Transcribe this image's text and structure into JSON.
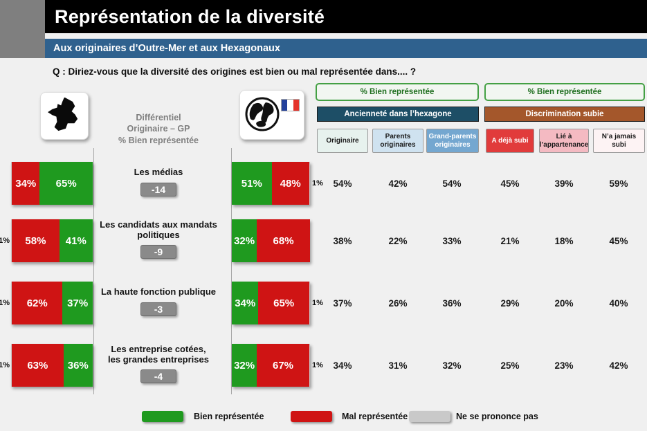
{
  "header": {
    "title": "Représentation de la diversité",
    "subtitle": "Aux originaires d’Outre-Mer et aux Hexagonaux",
    "question": "Q : Diriez-vous que la diversité des origines est bien ou mal représentée dans.... ?"
  },
  "center_column": {
    "header": "Différentiel\nOriginaire – GP\n% Bien représentée"
  },
  "table": {
    "group_headers": [
      "% Bien représentée",
      "% Bien représentée"
    ],
    "categories": [
      "Ancienneté dans l’hexagone",
      "Discrimination subie"
    ],
    "columns": [
      "Originaire",
      "Parents originaires",
      "Grand-parents originaires",
      "A déjà subi",
      "Lié à l’appartenance",
      "N’a jamais subi"
    ]
  },
  "rows": [
    {
      "label": "Les médias",
      "diff": "-14",
      "left": {
        "mal": "34%",
        "bien": "65%"
      },
      "right": {
        "bien": "51%",
        "mal": "48%",
        "nsp": "1%"
      },
      "values": [
        "54%",
        "42%",
        "54%",
        "45%",
        "39%",
        "59%"
      ]
    },
    {
      "label": "Les candidats aux mandats\npolitiques",
      "diff": "-9",
      "left": {
        "nsp": "1%",
        "mal": "58%",
        "bien": "41%"
      },
      "right": {
        "bien": "32%",
        "mal": "68%"
      },
      "values": [
        "38%",
        "22%",
        "33%",
        "21%",
        "18%",
        "45%"
      ]
    },
    {
      "label": "La haute fonction publique",
      "diff": "-3",
      "left": {
        "nsp": "1%",
        "mal": "62%",
        "bien": "37%"
      },
      "right": {
        "bien": "34%",
        "mal": "65%",
        "nsp": "1%"
      },
      "values": [
        "37%",
        "26%",
        "36%",
        "29%",
        "20%",
        "40%"
      ]
    },
    {
      "label": "Les entreprise cotées,\nles grandes entreprises",
      "diff": "-4",
      "left": {
        "nsp": "1%",
        "mal": "63%",
        "bien": "36%"
      },
      "right": {
        "bien": "32%",
        "mal": "67%",
        "nsp": "1%"
      },
      "values": [
        "34%",
        "31%",
        "32%",
        "25%",
        "23%",
        "42%"
      ]
    }
  ],
  "legend": {
    "bien": "Bien représentée",
    "mal": "Mal représentée",
    "nsp": "Ne se prononce pas"
  },
  "colors": {
    "bien": "#1f9a1f",
    "mal": "#cf1414",
    "nsp": "#c9c9c9",
    "anciennete": "#1d4e66",
    "discrimination": "#a4572b",
    "subtitle_bar": "#2f618e",
    "col_originaire": "#e7f2ee",
    "col_parents": "#cfe2f0",
    "col_grand_parents": "#74a7d0",
    "col_deja_subi": "#e13b3b",
    "col_lie": "#f4bac2",
    "col_jamais": "#fdf3f4",
    "flag_blue": "#23409b",
    "flag_red": "#e4342c"
  },
  "chart_data": {
    "type": "bar",
    "title": "Représentation de la diversité",
    "subtitle": "Aux originaires d’Outre-Mer et aux Hexagonaux",
    "question": "Q : Diriez-vous que la diversité des origines est bien ou mal représentée dans.... ?",
    "categories": [
      "Les médias",
      "Les candidats aux mandats politiques",
      "La haute fonction publique",
      "Les entreprise cotées, les grandes entreprises"
    ],
    "series": [
      {
        "name": "Hexagonaux – Mal représentée (%)",
        "values": [
          34,
          58,
          62,
          63
        ]
      },
      {
        "name": "Hexagonaux – Bien représentée (%)",
        "values": [
          65,
          41,
          37,
          36
        ]
      },
      {
        "name": "Hexagonaux – Ne se prononce pas (%)",
        "values": [
          1,
          1,
          1,
          1
        ]
      },
      {
        "name": "Originaires d’Outre-Mer – Bien représentée (%)",
        "values": [
          51,
          32,
          34,
          32
        ]
      },
      {
        "name": "Originaires d’Outre-Mer – Mal représentée (%)",
        "values": [
          48,
          68,
          65,
          67
        ]
      },
      {
        "name": "Originaires d’Outre-Mer – Ne se prononce pas (%)",
        "values": [
          1,
          0,
          1,
          1
        ]
      },
      {
        "name": "Différentiel Originaire – GP (% Bien représentée)",
        "values": [
          -14,
          -9,
          -3,
          -4
        ]
      },
      {
        "name": "% Bien représentée – Originaire",
        "values": [
          54,
          38,
          37,
          34
        ]
      },
      {
        "name": "% Bien représentée – Parents originaires",
        "values": [
          42,
          22,
          26,
          31
        ]
      },
      {
        "name": "% Bien représentée – Grand-parents originaires",
        "values": [
          54,
          33,
          36,
          32
        ]
      },
      {
        "name": "% Bien représentée – A déjà subi",
        "values": [
          45,
          21,
          29,
          25
        ]
      },
      {
        "name": "% Bien représentée – Lié à l’appartenance",
        "values": [
          39,
          18,
          20,
          23
        ]
      },
      {
        "name": "% Bien représentée – N’a jamais subi",
        "values": [
          59,
          45,
          40,
          42
        ]
      }
    ],
    "legend": [
      "Bien représentée",
      "Mal représentée",
      "Ne se prononce pas"
    ],
    "layout": "stacked horizontal bars left (Hexagonaux) and right (Outre-Mer) around central labels; data table of % Bien représentée by subgroup on the right"
  }
}
